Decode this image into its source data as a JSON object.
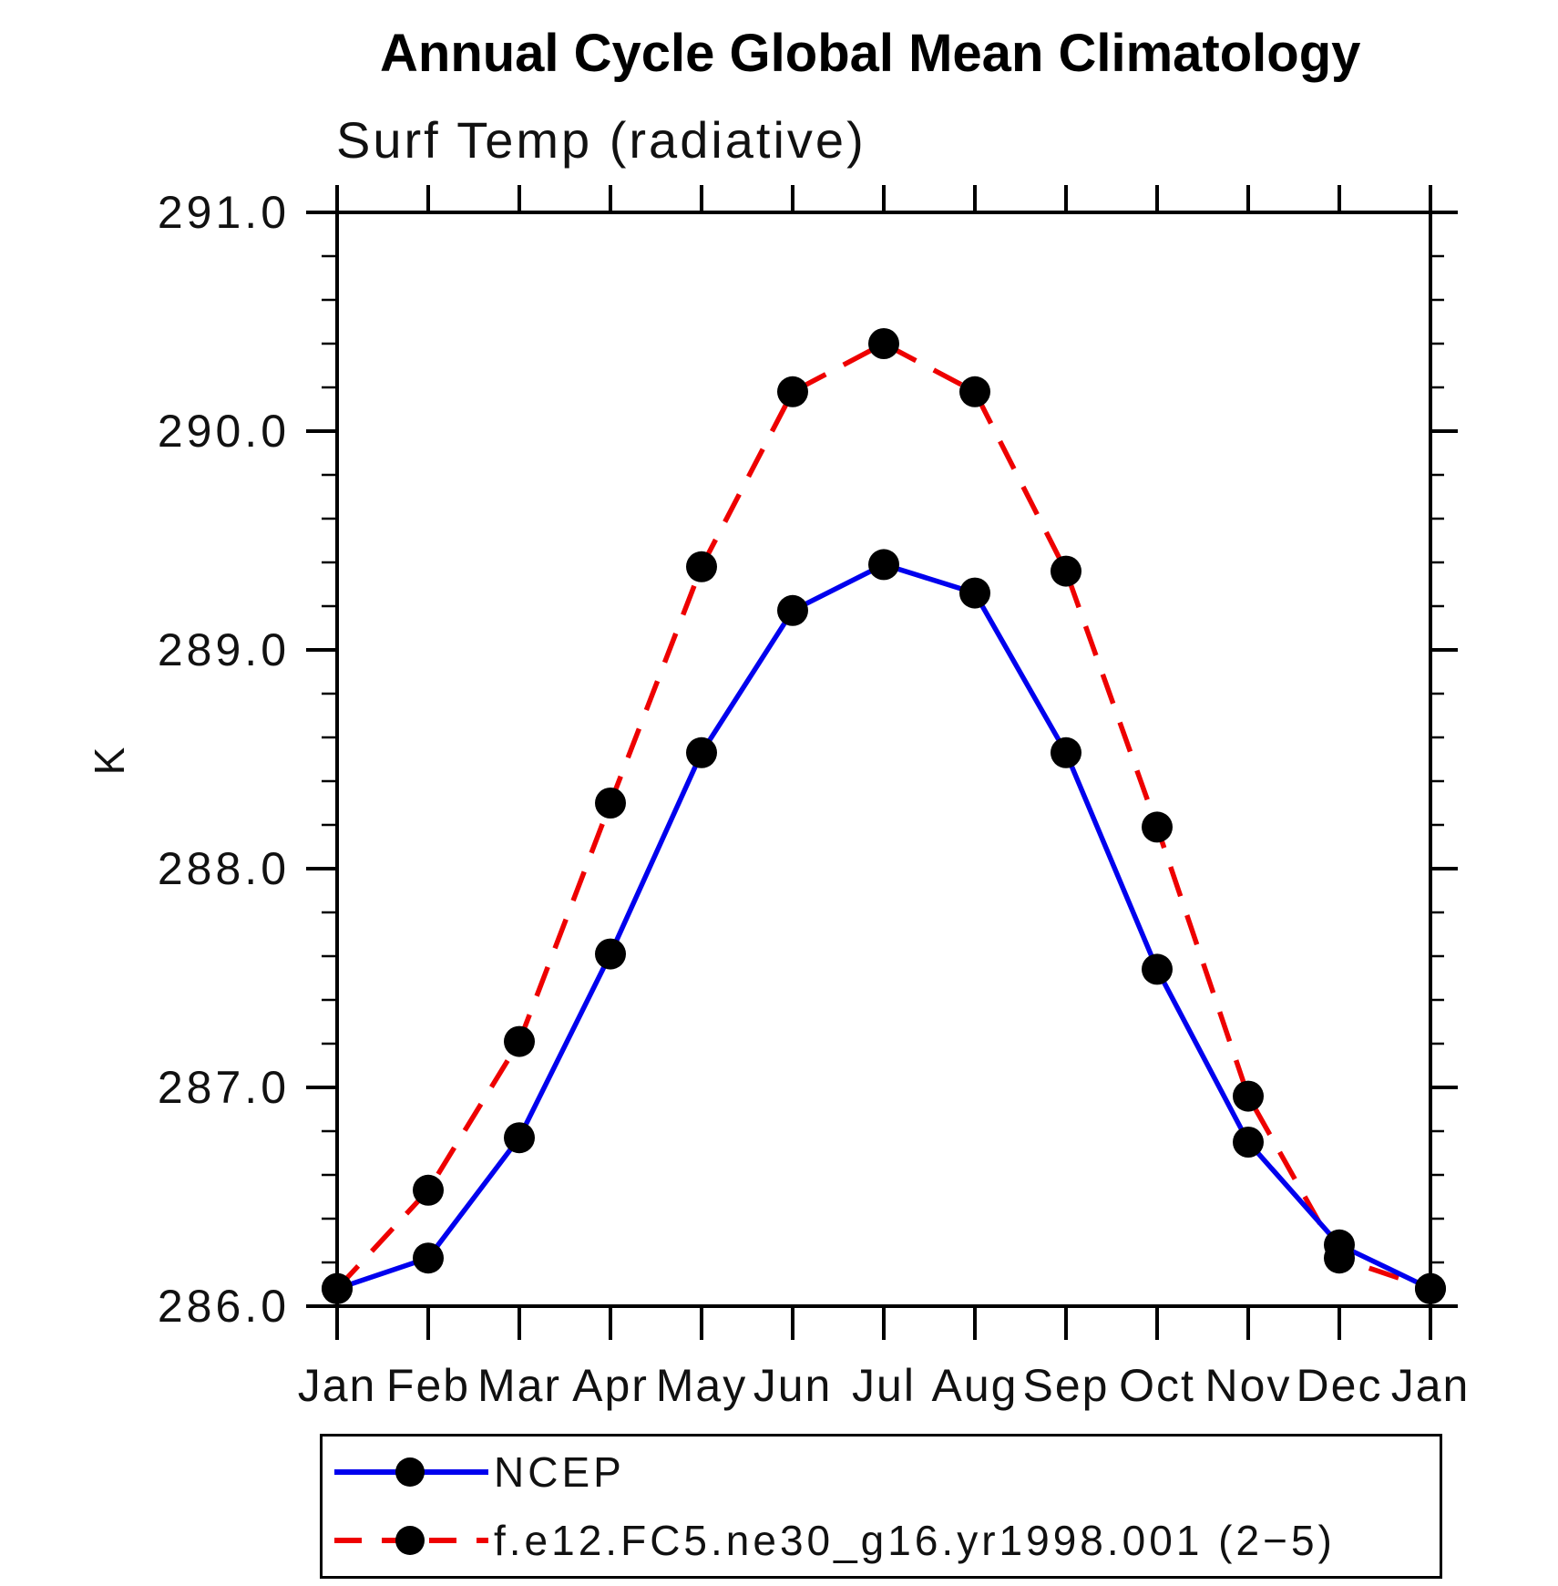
{
  "chart_data": {
    "type": "line",
    "title": "Annual Cycle Global Mean Climatology",
    "subtitle": "Surf Temp (radiative)",
    "ylabel": "K",
    "x_categories": [
      "Jan",
      "Feb",
      "Mar",
      "Apr",
      "May",
      "Jun",
      "Jul",
      "Aug",
      "Sep",
      "Oct",
      "Nov",
      "Dec",
      "Jan"
    ],
    "ylim": [
      286.0,
      291.0
    ],
    "y_major_step": 1.0,
    "y_minor_step": 0.2,
    "y_tick_labels": [
      "286.0",
      "287.0",
      "288.0",
      "289.0",
      "290.0",
      "291.0"
    ],
    "grid": false,
    "legend_position": "bottom",
    "marker_color": "#000000",
    "axis_color": "#000000",
    "series": [
      {
        "name": "NCEP",
        "color": "#0000ee",
        "style": "solid",
        "marker": "filled-black-circle",
        "values": [
          286.08,
          286.22,
          286.77,
          287.61,
          288.53,
          289.18,
          289.39,
          289.26,
          288.53,
          287.54,
          286.75,
          286.28,
          286.08
        ]
      },
      {
        "name": "f.e12.FC5.ne30_g16.yr1998.001 (2−5)",
        "color": "#ee0000",
        "style": "dashed",
        "marker": "filled-black-circle",
        "values": [
          286.08,
          286.53,
          287.21,
          288.3,
          289.38,
          290.18,
          290.4,
          290.18,
          289.36,
          288.19,
          286.96,
          286.22,
          286.08
        ]
      }
    ]
  }
}
